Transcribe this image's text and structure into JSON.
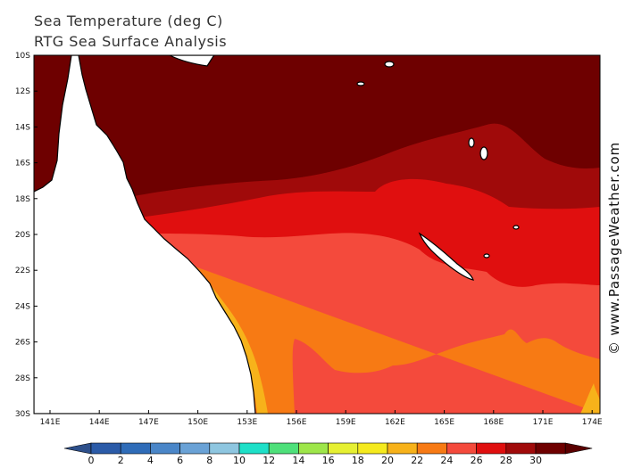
{
  "title": "Sea Temperature (deg C)",
  "subtitle": "RTG Sea Surface Analysis",
  "watermark": "© www.PassageWeather.com",
  "lat_labels": [
    "10S",
    "12S",
    "14S",
    "16S",
    "18S",
    "20S",
    "22S",
    "24S",
    "26S",
    "28S",
    "30S"
  ],
  "lon_labels": [
    "141E",
    "144E",
    "147E",
    "150E",
    "153E",
    "156E",
    "159E",
    "162E",
    "165E",
    "168E",
    "171E",
    "174E"
  ],
  "colorbar": {
    "ticks": [
      "0",
      "2",
      "4",
      "6",
      "8",
      "10",
      "12",
      "14",
      "16",
      "18",
      "20",
      "22",
      "24",
      "26",
      "28",
      "30"
    ],
    "colors": [
      "#2b5ba8",
      "#2f6cb8",
      "#4a86c8",
      "#6aa2d6",
      "#8ec6e0",
      "#1ee0c8",
      "#4ee07a",
      "#9ee64a",
      "#e6f032",
      "#f5ea1e",
      "#f7b21a",
      "#f77a14",
      "#f44a3c",
      "#e00f0f",
      "#a00a0a",
      "#6e0000"
    ],
    "left_cap_color": "#2d4f8a",
    "right_cap_color": "#5a0000"
  },
  "sst_colors": {
    "c30": "#6e0000",
    "c28": "#a00a0a",
    "c26": "#e00f0f",
    "c24": "#f44a3c",
    "c22": "#f77a14",
    "c20": "#f7b21a",
    "land": "#ffffff"
  }
}
